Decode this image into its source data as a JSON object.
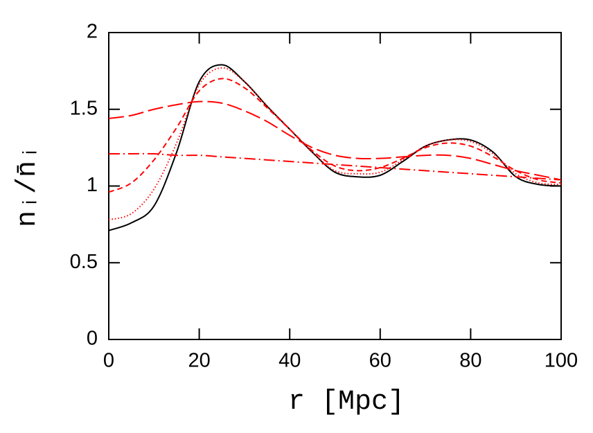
{
  "chart_data": {
    "type": "line",
    "xlabel": "r [Mpc]",
    "ylabel": "nᵢ/n̄ᵢ",
    "x": [
      0,
      5,
      10,
      15,
      20,
      25,
      30,
      35,
      40,
      45,
      50,
      55,
      60,
      65,
      70,
      75,
      80,
      85,
      90,
      95,
      100
    ],
    "series": [
      {
        "color": "#000000",
        "dash": "solid",
        "values": [
          0.71,
          0.76,
          0.87,
          1.22,
          1.68,
          1.79,
          1.68,
          1.52,
          1.37,
          1.22,
          1.09,
          1.06,
          1.07,
          1.16,
          1.26,
          1.3,
          1.3,
          1.22,
          1.06,
          1.01,
          1.0
        ]
      },
      {
        "color": "#ff0000",
        "dash": "dotted",
        "values": [
          0.78,
          0.82,
          0.98,
          1.28,
          1.66,
          1.77,
          1.68,
          1.52,
          1.37,
          1.22,
          1.1,
          1.08,
          1.09,
          1.17,
          1.26,
          1.3,
          1.29,
          1.21,
          1.08,
          1.02,
          1.01
        ]
      },
      {
        "color": "#ff0000",
        "dash": "short-dash",
        "values": [
          0.96,
          1.02,
          1.17,
          1.38,
          1.62,
          1.7,
          1.64,
          1.51,
          1.37,
          1.23,
          1.13,
          1.1,
          1.12,
          1.18,
          1.25,
          1.28,
          1.26,
          1.19,
          1.1,
          1.04,
          1.02
        ]
      },
      {
        "color": "#ff0000",
        "dash": "long-dash",
        "values": [
          1.44,
          1.46,
          1.5,
          1.53,
          1.55,
          1.54,
          1.49,
          1.42,
          1.33,
          1.25,
          1.2,
          1.18,
          1.18,
          1.19,
          1.2,
          1.2,
          1.18,
          1.14,
          1.1,
          1.07,
          1.04
        ]
      },
      {
        "color": "#ff0000",
        "dash": "dash-dot",
        "values": [
          1.21,
          1.21,
          1.21,
          1.2,
          1.2,
          1.19,
          1.18,
          1.17,
          1.16,
          1.15,
          1.14,
          1.13,
          1.12,
          1.11,
          1.1,
          1.09,
          1.08,
          1.07,
          1.06,
          1.05,
          1.04
        ]
      }
    ],
    "xlim": [
      0,
      100
    ],
    "xticks": [
      0,
      20,
      40,
      60,
      80,
      100
    ],
    "ylim": [
      0,
      2
    ],
    "yticks": [
      0,
      0.5,
      1,
      1.5,
      2
    ]
  }
}
